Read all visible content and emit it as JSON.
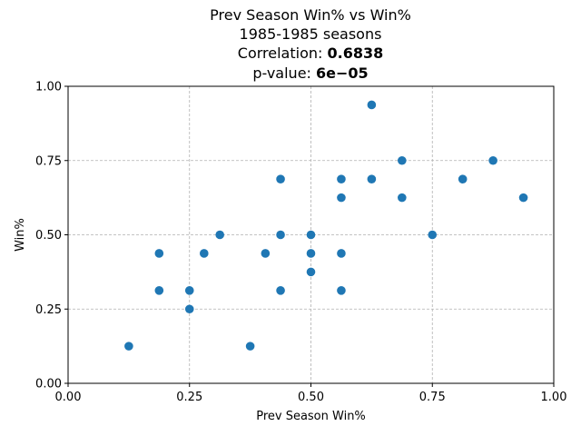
{
  "chart_data": {
    "type": "scatter",
    "title": "Prev Season Win% vs Win%",
    "subtitle": "1985-1985 seasons",
    "correlation_label": "Correlation:",
    "correlation_value": "0.6838",
    "pvalue_label": "p-value:",
    "pvalue_value": "6e−05",
    "xlabel": "Prev Season Win%",
    "ylabel": "Win%",
    "xlim": [
      0,
      1
    ],
    "ylim": [
      0,
      1
    ],
    "xticks": [
      "0.00",
      "0.25",
      "0.50",
      "0.75",
      "1.00"
    ],
    "yticks": [
      "0.00",
      "0.25",
      "0.50",
      "0.75",
      "1.00"
    ],
    "grid": true,
    "marker_color": "#1f77b4",
    "points": [
      {
        "x": 0.125,
        "y": 0.125
      },
      {
        "x": 0.1875,
        "y": 0.4375
      },
      {
        "x": 0.1875,
        "y": 0.3125
      },
      {
        "x": 0.25,
        "y": 0.3125
      },
      {
        "x": 0.25,
        "y": 0.25
      },
      {
        "x": 0.28,
        "y": 0.4375
      },
      {
        "x": 0.3125,
        "y": 0.5
      },
      {
        "x": 0.375,
        "y": 0.125
      },
      {
        "x": 0.40625,
        "y": 0.4375
      },
      {
        "x": 0.4375,
        "y": 0.6875
      },
      {
        "x": 0.4375,
        "y": 0.5
      },
      {
        "x": 0.4375,
        "y": 0.3125
      },
      {
        "x": 0.5,
        "y": 0.5
      },
      {
        "x": 0.5,
        "y": 0.4375
      },
      {
        "x": 0.5,
        "y": 0.375
      },
      {
        "x": 0.5625,
        "y": 0.6875
      },
      {
        "x": 0.5625,
        "y": 0.625
      },
      {
        "x": 0.5625,
        "y": 0.4375
      },
      {
        "x": 0.5625,
        "y": 0.3125
      },
      {
        "x": 0.625,
        "y": 0.9375
      },
      {
        "x": 0.625,
        "y": 0.6875
      },
      {
        "x": 0.6875,
        "y": 0.75
      },
      {
        "x": 0.6875,
        "y": 0.625
      },
      {
        "x": 0.75,
        "y": 0.5
      },
      {
        "x": 0.8125,
        "y": 0.6875
      },
      {
        "x": 0.875,
        "y": 0.75
      },
      {
        "x": 0.9375,
        "y": 0.625
      }
    ]
  }
}
